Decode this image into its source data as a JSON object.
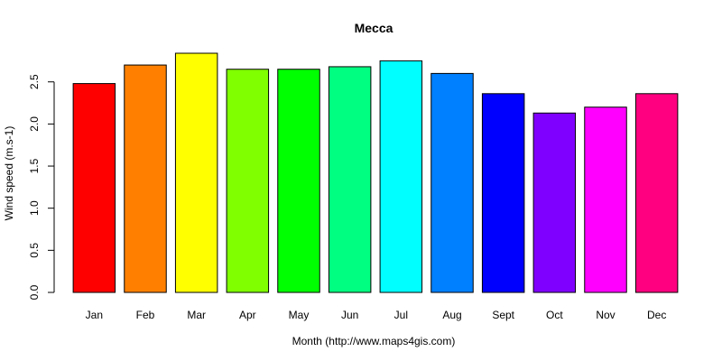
{
  "chart_data": {
    "type": "bar",
    "title": "Mecca",
    "xlabel": "Month (http://www.maps4gis.com)",
    "ylabel": "Wind speed (m.s-1)",
    "categories": [
      "Jan",
      "Feb",
      "Mar",
      "Apr",
      "May",
      "Jun",
      "Jul",
      "Aug",
      "Sept",
      "Oct",
      "Nov",
      "Dec"
    ],
    "values": [
      2.48,
      2.7,
      2.84,
      2.65,
      2.65,
      2.68,
      2.75,
      2.6,
      2.36,
      2.13,
      2.2,
      2.36
    ],
    "colors": [
      "#FF0000",
      "#FF8000",
      "#FFFF00",
      "#80FF00",
      "#00FF00",
      "#00FF80",
      "#00FFFF",
      "#0080FF",
      "#0000FF",
      "#8000FF",
      "#FF00FF",
      "#FF0080"
    ],
    "yticks": [
      "0.0",
      "0.5",
      "1.0",
      "1.5",
      "2.0",
      "2.5"
    ],
    "ylim": [
      0,
      2.84
    ],
    "grid": false,
    "legend": "none"
  }
}
